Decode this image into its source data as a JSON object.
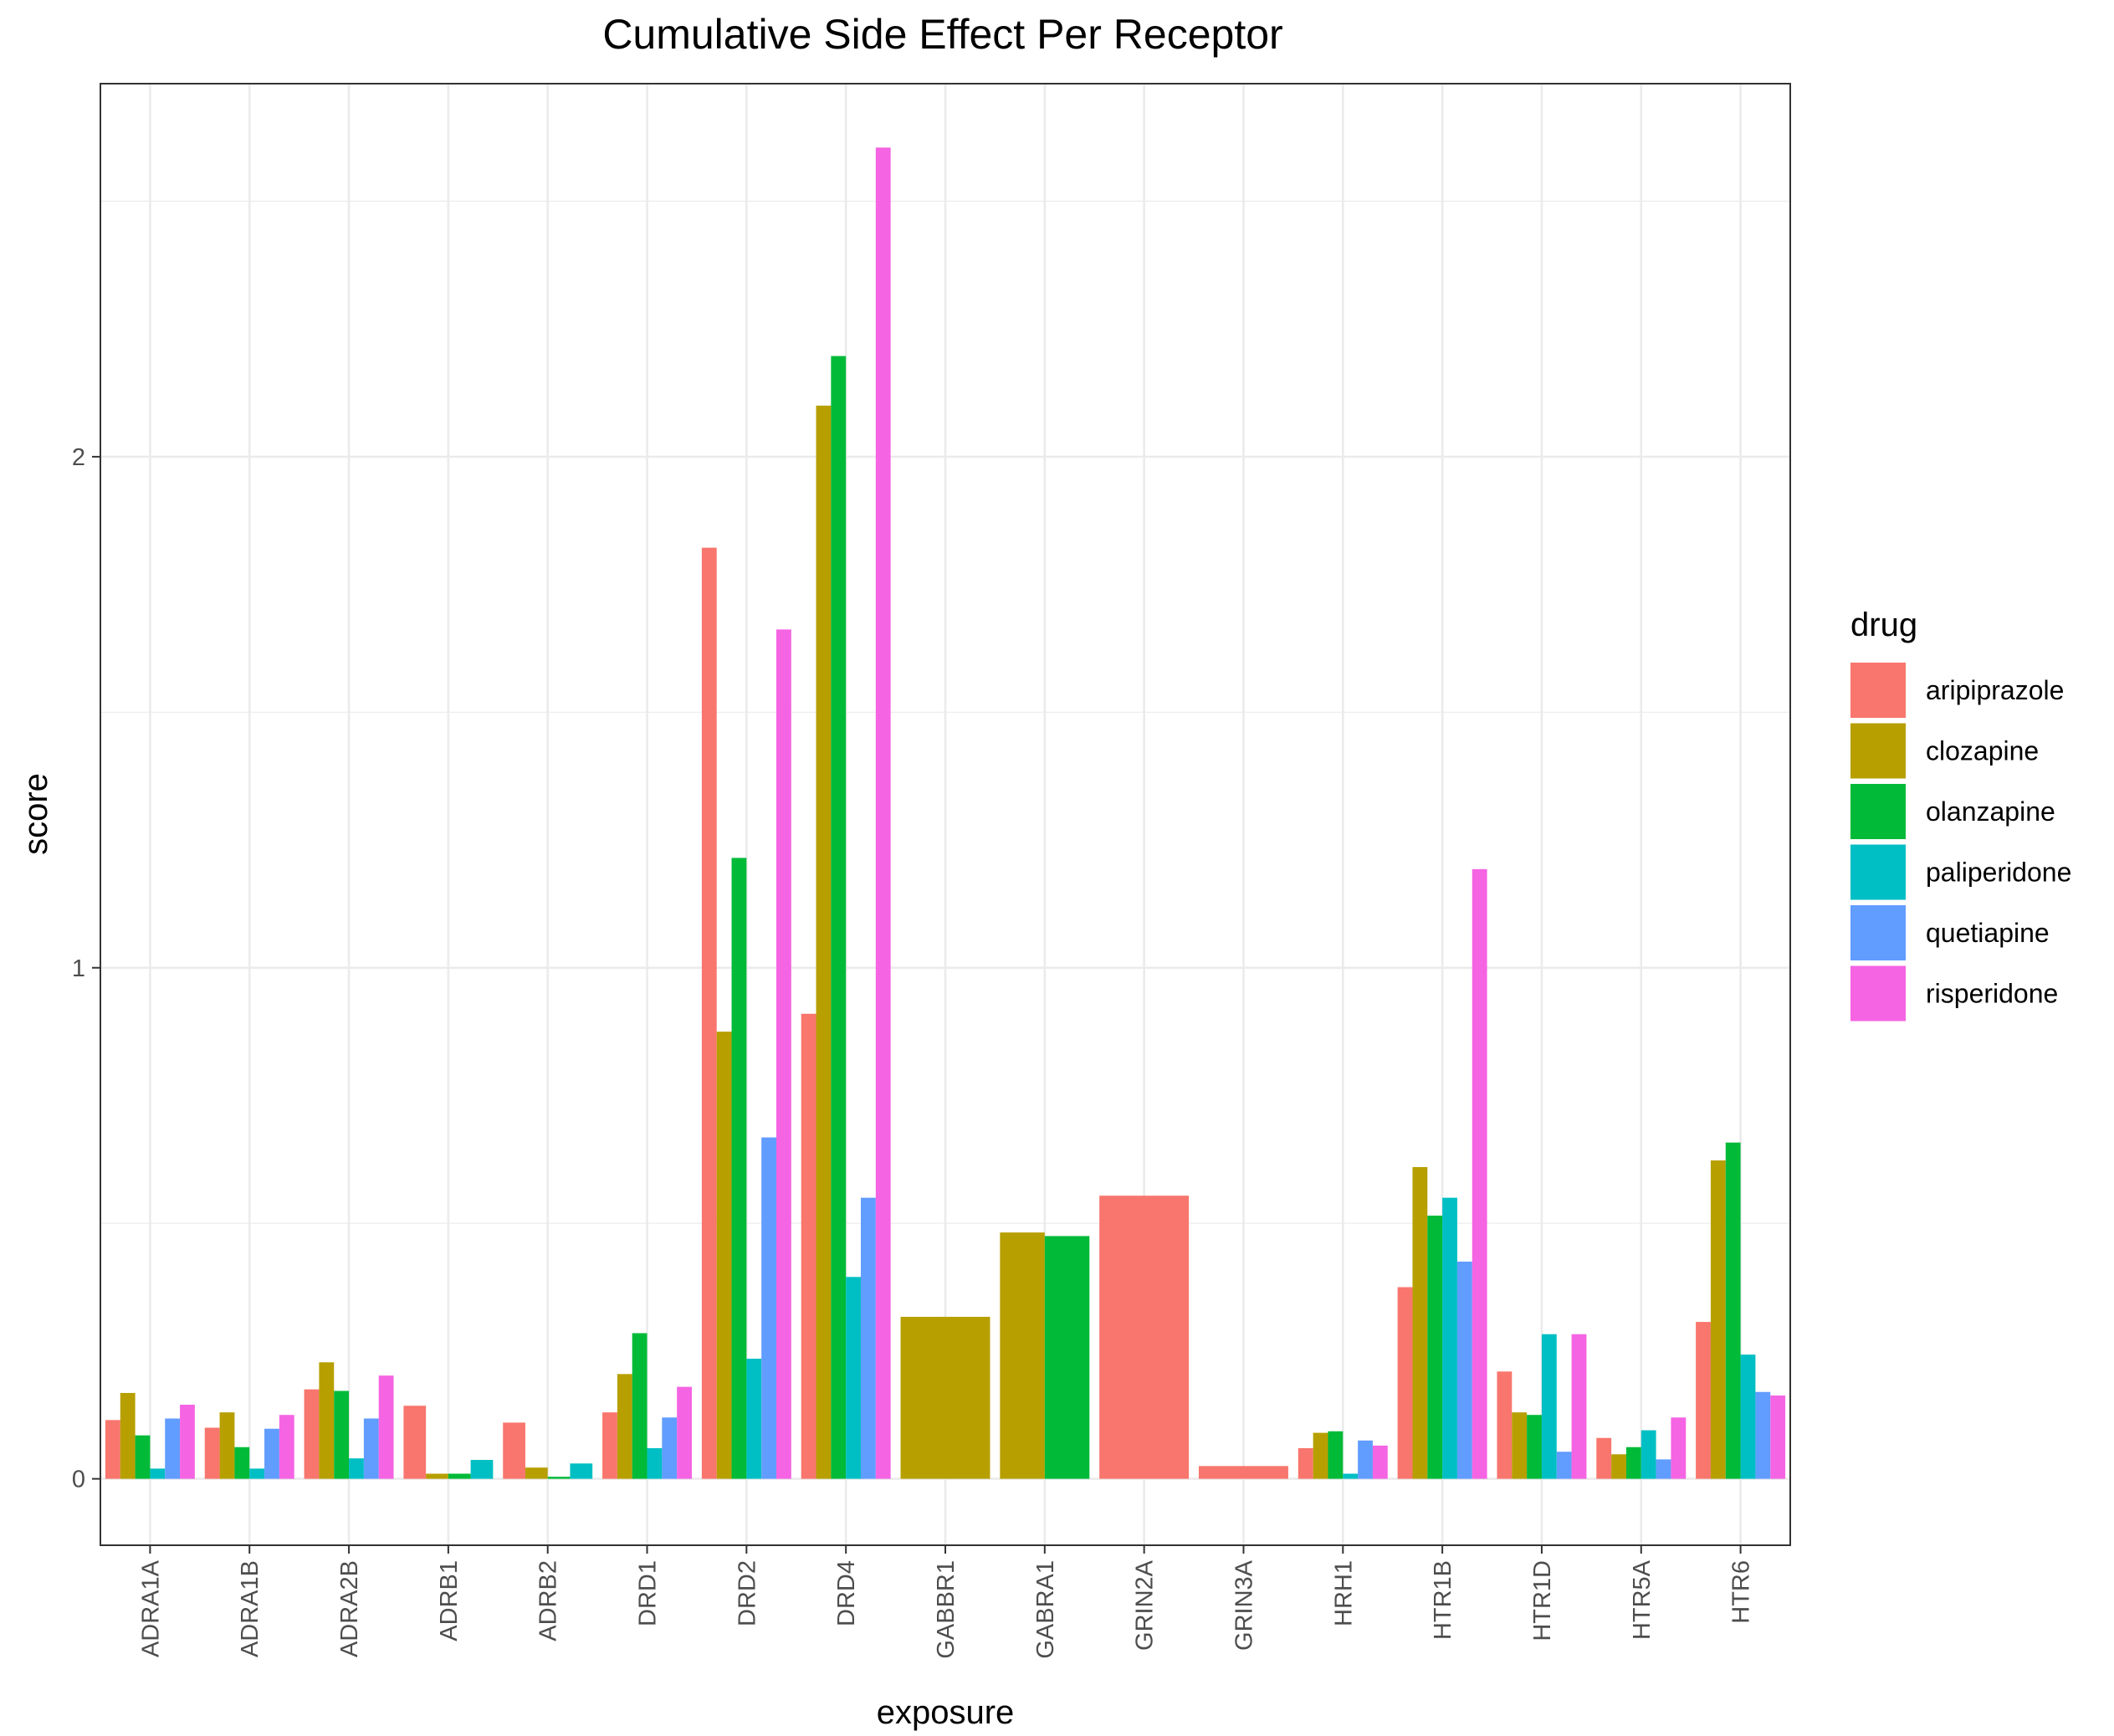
{
  "chart_data": {
    "type": "bar",
    "title": "Cumulative Side Effect Per Receptor",
    "xlabel": "exposure",
    "ylabel": "score",
    "ylim": [
      -0.13,
      2.73
    ],
    "yticks": [
      0,
      1,
      2
    ],
    "grid": true,
    "legend_position": "right",
    "legend_title": "drug",
    "series_colors": {
      "aripiprazole": "#F8766D",
      "clozapine": "#B79F00",
      "olanzapine": "#00BA38",
      "paliperidone": "#00BFC4",
      "quetiapine": "#619CFF",
      "risperidone": "#F564E3"
    },
    "series_names": [
      "aripiprazole",
      "clozapine",
      "olanzapine",
      "paliperidone",
      "quetiapine",
      "risperidone"
    ],
    "categories": [
      "ADRA1A",
      "ADRA1B",
      "ADRA2B",
      "ADRB1",
      "ADRB2",
      "DRD1",
      "DRD2",
      "DRD4",
      "GABBR1",
      "GABRA1",
      "GRIN2A",
      "GRIN3A",
      "HRH1",
      "HTR1B",
      "HTR1D",
      "HTR5A",
      "HTR6"
    ],
    "bars": [
      {
        "category": "ADRA1A",
        "values": [
          {
            "series": "aripiprazole",
            "value": 0.115
          },
          {
            "series": "clozapine",
            "value": 0.168
          },
          {
            "series": "olanzapine",
            "value": 0.085
          },
          {
            "series": "paliperidone",
            "value": 0.02
          },
          {
            "series": "quetiapine",
            "value": 0.118
          },
          {
            "series": "risperidone",
            "value": 0.145
          }
        ]
      },
      {
        "category": "ADRA1B",
        "values": [
          {
            "series": "aripiprazole",
            "value": 0.1
          },
          {
            "series": "clozapine",
            "value": 0.13
          },
          {
            "series": "olanzapine",
            "value": 0.062
          },
          {
            "series": "paliperidone",
            "value": 0.02
          },
          {
            "series": "quetiapine",
            "value": 0.098
          },
          {
            "series": "risperidone",
            "value": 0.125
          }
        ]
      },
      {
        "category": "ADRA2B",
        "values": [
          {
            "series": "aripiprazole",
            "value": 0.175
          },
          {
            "series": "clozapine",
            "value": 0.228
          },
          {
            "series": "olanzapine",
            "value": 0.172
          },
          {
            "series": "paliperidone",
            "value": 0.04
          },
          {
            "series": "quetiapine",
            "value": 0.118
          },
          {
            "series": "risperidone",
            "value": 0.202
          }
        ]
      },
      {
        "category": "ADRB1",
        "values": [
          {
            "series": "aripiprazole",
            "value": 0.143
          },
          {
            "series": "clozapine",
            "value": 0.01
          },
          {
            "series": "olanzapine",
            "value": 0.01
          },
          {
            "series": "paliperidone",
            "value": 0.037
          }
        ]
      },
      {
        "category": "ADRB2",
        "values": [
          {
            "series": "aripiprazole",
            "value": 0.11
          },
          {
            "series": "clozapine",
            "value": 0.022
          },
          {
            "series": "olanzapine",
            "value": 0.004
          },
          {
            "series": "paliperidone",
            "value": 0.03
          }
        ]
      },
      {
        "category": "DRD1",
        "values": [
          {
            "series": "aripiprazole",
            "value": 0.13
          },
          {
            "series": "clozapine",
            "value": 0.205
          },
          {
            "series": "olanzapine",
            "value": 0.285
          },
          {
            "series": "paliperidone",
            "value": 0.06
          },
          {
            "series": "quetiapine",
            "value": 0.12
          },
          {
            "series": "risperidone",
            "value": 0.18
          }
        ]
      },
      {
        "category": "DRD2",
        "values": [
          {
            "series": "aripiprazole",
            "value": 1.822
          },
          {
            "series": "clozapine",
            "value": 0.875
          },
          {
            "series": "olanzapine",
            "value": 1.215
          },
          {
            "series": "paliperidone",
            "value": 0.235
          },
          {
            "series": "quetiapine",
            "value": 0.668
          },
          {
            "series": "risperidone",
            "value": 1.662
          }
        ]
      },
      {
        "category": "DRD4",
        "values": [
          {
            "series": "aripiprazole",
            "value": 0.91
          },
          {
            "series": "clozapine",
            "value": 2.1
          },
          {
            "series": "olanzapine",
            "value": 2.197
          },
          {
            "series": "paliperidone",
            "value": 0.395
          },
          {
            "series": "quetiapine",
            "value": 0.55
          },
          {
            "series": "risperidone",
            "value": 2.605
          }
        ]
      },
      {
        "category": "GABBR1",
        "values": [
          {
            "series": "clozapine",
            "value": 0.317
          }
        ]
      },
      {
        "category": "GABRA1",
        "values": [
          {
            "series": "clozapine",
            "value": 0.482
          },
          {
            "series": "olanzapine",
            "value": 0.475
          }
        ]
      },
      {
        "category": "GRIN2A",
        "values": [
          {
            "series": "aripiprazole",
            "value": 0.554
          }
        ]
      },
      {
        "category": "GRIN3A",
        "values": [
          {
            "series": "aripiprazole",
            "value": 0.025
          }
        ]
      },
      {
        "category": "HRH1",
        "values": [
          {
            "series": "aripiprazole",
            "value": 0.06
          },
          {
            "series": "clozapine",
            "value": 0.09
          },
          {
            "series": "olanzapine",
            "value": 0.093
          },
          {
            "series": "paliperidone",
            "value": 0.01
          },
          {
            "series": "quetiapine",
            "value": 0.075
          },
          {
            "series": "risperidone",
            "value": 0.065
          }
        ]
      },
      {
        "category": "HTR1B",
        "values": [
          {
            "series": "aripiprazole",
            "value": 0.375
          },
          {
            "series": "clozapine",
            "value": 0.61
          },
          {
            "series": "olanzapine",
            "value": 0.515
          },
          {
            "series": "paliperidone",
            "value": 0.55
          },
          {
            "series": "quetiapine",
            "value": 0.425
          },
          {
            "series": "risperidone",
            "value": 1.193
          }
        ]
      },
      {
        "category": "HTR1D",
        "values": [
          {
            "series": "aripiprazole",
            "value": 0.21
          },
          {
            "series": "clozapine",
            "value": 0.13
          },
          {
            "series": "olanzapine",
            "value": 0.125
          },
          {
            "series": "paliperidone",
            "value": 0.283
          },
          {
            "series": "quetiapine",
            "value": 0.053
          },
          {
            "series": "risperidone",
            "value": 0.283
          }
        ]
      },
      {
        "category": "HTR5A",
        "values": [
          {
            "series": "aripiprazole",
            "value": 0.08
          },
          {
            "series": "clozapine",
            "value": 0.048
          },
          {
            "series": "olanzapine",
            "value": 0.062
          },
          {
            "series": "paliperidone",
            "value": 0.095
          },
          {
            "series": "quetiapine",
            "value": 0.038
          },
          {
            "series": "risperidone",
            "value": 0.12
          }
        ]
      },
      {
        "category": "HTR6",
        "values": [
          {
            "series": "aripiprazole",
            "value": 0.307
          },
          {
            "series": "clozapine",
            "value": 0.623
          },
          {
            "series": "olanzapine",
            "value": 0.658
          },
          {
            "series": "paliperidone",
            "value": 0.243
          },
          {
            "series": "quetiapine",
            "value": 0.17
          },
          {
            "series": "risperidone",
            "value": 0.163
          }
        ]
      }
    ]
  }
}
